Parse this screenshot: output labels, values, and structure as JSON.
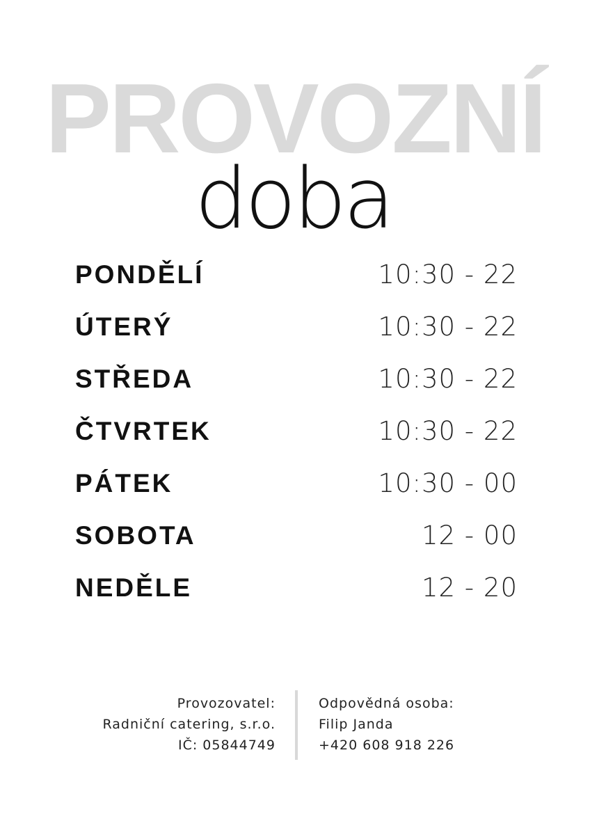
{
  "title": {
    "main": "PROVOZNÍ",
    "sub": "doba"
  },
  "hours": [
    {
      "day": "PONDĚLÍ",
      "time": "10:30 - 22"
    },
    {
      "day": "ÚTERÝ",
      "time": "10:30 - 22"
    },
    {
      "day": "STŘEDA",
      "time": "10:30 - 22"
    },
    {
      "day": "ČTVRTEK",
      "time": "10:30 - 22"
    },
    {
      "day": "PÁTEK",
      "time": "10:30 - 00"
    },
    {
      "day": "SOBOTA",
      "time": "12 - 00"
    },
    {
      "day": "NEDĚLE",
      "time": "12 - 20"
    }
  ],
  "footer": {
    "operator": {
      "label": "Provozovatel:",
      "name": "Radniční catering, s.r.o.",
      "id": "IČ: 05844749"
    },
    "contact": {
      "label": "Odpovědná osoba:",
      "name": "Filip Janda",
      "phone": "+420 608 918 226"
    }
  },
  "colors": {
    "title_gray": "#dadada",
    "text": "#111111",
    "divider": "#d8d8d8"
  }
}
